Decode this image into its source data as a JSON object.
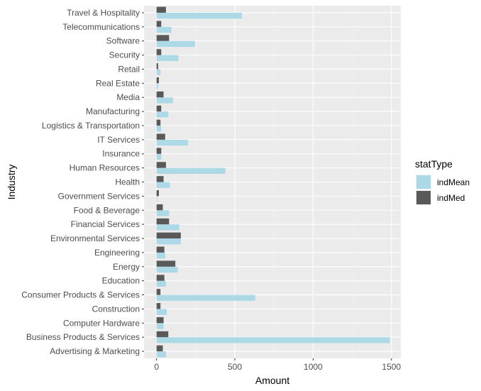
{
  "chart_data": {
    "type": "bar",
    "orientation": "horizontal",
    "xlabel": "Amount",
    "ylabel": "Industry",
    "xlim": [
      -80,
      1560
    ],
    "xticks": [
      0,
      500,
      1000,
      1500
    ],
    "grid": true,
    "legend_position": "right",
    "legend_title": "statType",
    "categories": [
      "Advertising & Marketing",
      "Business Products & Services",
      "Computer Hardware",
      "Construction",
      "Consumer Products & Services",
      "Education",
      "Energy",
      "Engineering",
      "Environmental Services",
      "Financial Services",
      "Food & Beverage",
      "Government Services",
      "Health",
      "Human Resources",
      "Insurance",
      "IT Services",
      "Logistics & Transportation",
      "Manufacturing",
      "Media",
      "Real Estate",
      "Retail",
      "Security",
      "Software",
      "Telecommunications",
      "Travel & Hospitality"
    ],
    "series": [
      {
        "name": "indMean",
        "color": "#ADD8E6",
        "values": [
          60,
          1490,
          45,
          65,
          630,
          60,
          135,
          55,
          155,
          145,
          80,
          5,
          85,
          440,
          30,
          200,
          30,
          75,
          105,
          10,
          25,
          140,
          245,
          95,
          545
        ]
      },
      {
        "name": "indMed",
        "color": "#595959",
        "values": [
          40,
          75,
          45,
          25,
          25,
          50,
          120,
          50,
          155,
          80,
          40,
          15,
          45,
          60,
          30,
          55,
          25,
          30,
          45,
          15,
          10,
          30,
          80,
          30,
          60
        ]
      }
    ]
  }
}
